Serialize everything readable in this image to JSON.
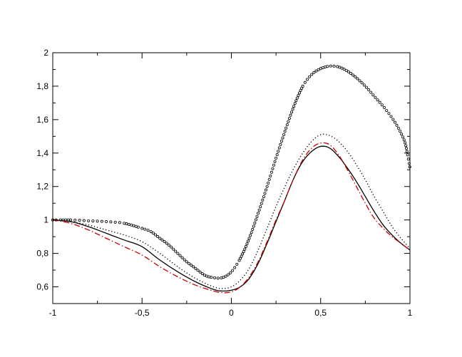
{
  "chart_data": {
    "type": "line",
    "title": "",
    "xlabel": "",
    "ylabel": "",
    "xlim": [
      -1,
      1
    ],
    "ylim": [
      0.5,
      2.0
    ],
    "x_ticks": [
      {
        "value": -1,
        "label": "-1"
      },
      {
        "value": -0.5,
        "label": "-0,5"
      },
      {
        "value": 0,
        "label": "0"
      },
      {
        "value": 0.5,
        "label": "0,5"
      },
      {
        "value": 1,
        "label": "1"
      }
    ],
    "y_ticks": [
      {
        "value": 0.6,
        "label": "0,6"
      },
      {
        "value": 0.8,
        "label": "0,8"
      },
      {
        "value": 1.0,
        "label": "1"
      },
      {
        "value": 1.2,
        "label": "1,2"
      },
      {
        "value": 1.4,
        "label": "1,4"
      },
      {
        "value": 1.6,
        "label": "1,6"
      },
      {
        "value": 1.8,
        "label": "1,8"
      },
      {
        "value": 2.0,
        "label": "2"
      }
    ],
    "grid": false,
    "series": [
      {
        "style": "circles",
        "color": "#000000",
        "x": [
          -1.0,
          -0.9,
          -0.8,
          -0.7,
          -0.6,
          -0.5,
          -0.45,
          -0.4,
          -0.35,
          -0.3,
          -0.25,
          -0.2,
          -0.15,
          -0.1,
          -0.05,
          0.0,
          0.05,
          0.1,
          0.15,
          0.2,
          0.25,
          0.3,
          0.35,
          0.4,
          0.45,
          0.5,
          0.55,
          0.6,
          0.65,
          0.7,
          0.75,
          0.8,
          0.85,
          0.9,
          0.94,
          0.97,
          0.985,
          1.0
        ],
        "y": [
          1.0,
          1.0,
          0.995,
          0.99,
          0.98,
          0.95,
          0.93,
          0.89,
          0.85,
          0.8,
          0.75,
          0.71,
          0.67,
          0.655,
          0.655,
          0.69,
          0.77,
          0.89,
          1.04,
          1.2,
          1.37,
          1.53,
          1.68,
          1.8,
          1.87,
          1.905,
          1.92,
          1.915,
          1.89,
          1.85,
          1.8,
          1.74,
          1.68,
          1.61,
          1.54,
          1.47,
          1.4,
          1.31
        ]
      },
      {
        "style": "dotted",
        "color": "#000000",
        "x": [
          -1.0,
          -0.9,
          -0.8,
          -0.7,
          -0.6,
          -0.5,
          -0.4,
          -0.3,
          -0.2,
          -0.1,
          -0.05,
          0.0,
          0.05,
          0.1,
          0.15,
          0.2,
          0.25,
          0.3,
          0.35,
          0.4,
          0.45,
          0.5,
          0.55,
          0.6,
          0.65,
          0.7,
          0.75,
          0.8,
          0.85,
          0.9,
          0.95,
          1.0
        ],
        "y": [
          1.0,
          0.99,
          0.97,
          0.94,
          0.91,
          0.87,
          0.8,
          0.72,
          0.65,
          0.6,
          0.59,
          0.6,
          0.64,
          0.71,
          0.82,
          0.95,
          1.08,
          1.2,
          1.31,
          1.4,
          1.47,
          1.51,
          1.505,
          1.47,
          1.41,
          1.33,
          1.24,
          1.14,
          1.05,
          0.96,
          0.89,
          0.83
        ]
      },
      {
        "style": "solid",
        "color": "#000000",
        "x": [
          -1.0,
          -0.9,
          -0.8,
          -0.7,
          -0.6,
          -0.5,
          -0.4,
          -0.3,
          -0.2,
          -0.1,
          -0.05,
          0.0,
          0.05,
          0.1,
          0.15,
          0.2,
          0.25,
          0.3,
          0.35,
          0.4,
          0.45,
          0.5,
          0.55,
          0.6,
          0.65,
          0.7,
          0.75,
          0.8,
          0.85,
          0.9,
          0.95,
          1.0
        ],
        "y": [
          1.0,
          0.99,
          0.96,
          0.92,
          0.88,
          0.84,
          0.76,
          0.69,
          0.63,
          0.585,
          0.575,
          0.58,
          0.6,
          0.65,
          0.74,
          0.86,
          0.99,
          1.12,
          1.25,
          1.35,
          1.41,
          1.44,
          1.43,
          1.38,
          1.31,
          1.23,
          1.14,
          1.05,
          0.97,
          0.91,
          0.86,
          0.82
        ]
      },
      {
        "style": "dash-dot",
        "color": "#cc0000",
        "x": [
          -1.0,
          -0.9,
          -0.8,
          -0.7,
          -0.6,
          -0.5,
          -0.4,
          -0.3,
          -0.2,
          -0.1,
          -0.05,
          0.0,
          0.05,
          0.1,
          0.15,
          0.2,
          0.25,
          0.3,
          0.35,
          0.4,
          0.45,
          0.5,
          0.55,
          0.6,
          0.65,
          0.7,
          0.75,
          0.8,
          0.85,
          0.9,
          0.95,
          1.0
        ],
        "y": [
          1.0,
          0.98,
          0.94,
          0.89,
          0.84,
          0.79,
          0.72,
          0.66,
          0.61,
          0.575,
          0.565,
          0.57,
          0.6,
          0.66,
          0.75,
          0.87,
          1.0,
          1.12,
          1.25,
          1.36,
          1.43,
          1.46,
          1.45,
          1.39,
          1.3,
          1.2,
          1.1,
          1.01,
          0.95,
          0.9,
          0.86,
          0.82
        ]
      }
    ]
  }
}
